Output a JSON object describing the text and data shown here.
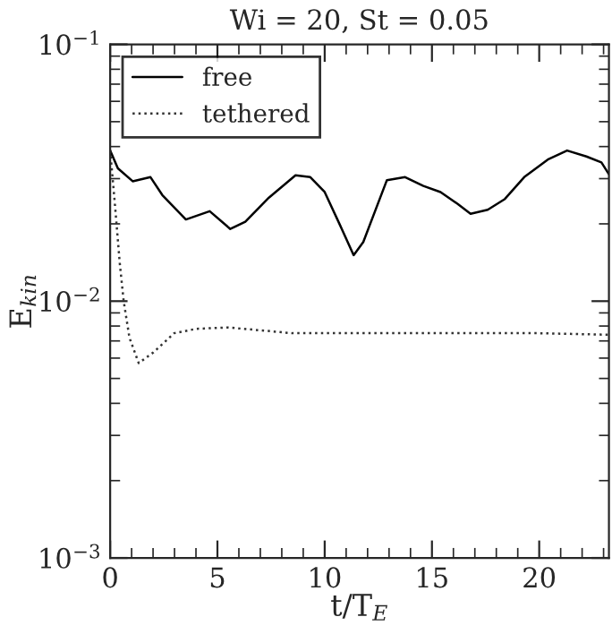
{
  "chart_data": {
    "type": "line",
    "title": "Wi = 20, St = 0.05",
    "xlabel": "t/T$_{E}$",
    "ylabel": "E$_{kin}$",
    "log": "y",
    "xlim": [
      0,
      23.25
    ],
    "xticks": [
      0,
      5,
      10,
      15,
      20
    ],
    "ylim": [
      0.001,
      0.1
    ],
    "yticks": [
      {
        "value": 0.001,
        "label": "10$^{−3}$"
      },
      {
        "value": 0.01,
        "label": "10$^{−2}$"
      },
      {
        "value": 0.1,
        "label": "10$^{−1}$"
      }
    ],
    "grid": false,
    "legend": "top left",
    "series": [
      {
        "name": "free",
        "color": "#000000",
        "line_style": "solid",
        "x": [
          0,
          0.36,
          1.05,
          1.88,
          2.43,
          3.53,
          4.64,
          5.6,
          6.3,
          7.4,
          8.64,
          9.33,
          10.0,
          10.7,
          11.35,
          11.8,
          12.9,
          13.75,
          14.6,
          15.4,
          16.2,
          16.8,
          17.6,
          18.4,
          19.3,
          20.4,
          21.3,
          22.2,
          22.9,
          23.25
        ],
        "values": [
          0.0386,
          0.0329,
          0.0293,
          0.0304,
          0.0259,
          0.0208,
          0.0224,
          0.0191,
          0.0204,
          0.0253,
          0.0309,
          0.0304,
          0.0266,
          0.0199,
          0.0151,
          0.017,
          0.0296,
          0.0304,
          0.0281,
          0.0266,
          0.0239,
          0.0219,
          0.0227,
          0.025,
          0.0304,
          0.0356,
          0.0386,
          0.0366,
          0.0347,
          0.0312
        ]
      },
      {
        "name": "tethered",
        "color": "#333333",
        "line_style": "dotted",
        "x": [
          0,
          0.2,
          0.45,
          0.63,
          0.9,
          1.33,
          2.0,
          2.98,
          4.0,
          5.5,
          7.0,
          8.5,
          11,
          14,
          17,
          20,
          23.25
        ],
        "values": [
          0.0386,
          0.025,
          0.014,
          0.01,
          0.0072,
          0.00574,
          0.0063,
          0.0075,
          0.0078,
          0.0079,
          0.0077,
          0.0075,
          0.0075,
          0.0075,
          0.0075,
          0.0075,
          0.0074
        ]
      }
    ]
  }
}
